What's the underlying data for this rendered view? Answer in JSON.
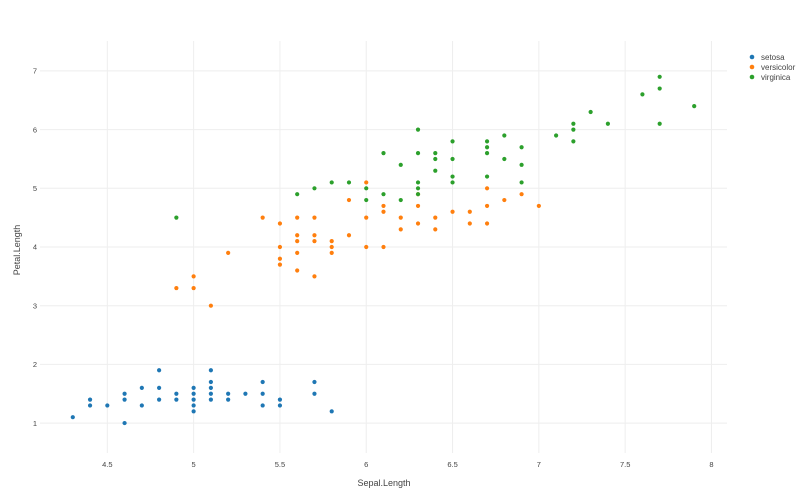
{
  "chart_data": {
    "type": "scatter",
    "xlabel": "Sepal.Length",
    "ylabel": "Petal.Length",
    "xlim": [
      4.11,
      8.09
    ],
    "ylim": [
      0.49,
      7.51
    ],
    "x_ticks": [
      "4.5",
      "5",
      "5.5",
      "6",
      "6.5",
      "7",
      "7.5",
      "8"
    ],
    "y_ticks": [
      "1",
      "2",
      "3",
      "4",
      "5",
      "6",
      "7"
    ],
    "grid": true,
    "legend_position": "top-right",
    "series": [
      {
        "name": "setosa",
        "color": "#1f77b4",
        "points": [
          [
            4.3,
            1.1
          ],
          [
            4.4,
            1.3
          ],
          [
            4.4,
            1.4
          ],
          [
            4.5,
            1.3
          ],
          [
            4.6,
            1.0
          ],
          [
            4.6,
            1.4
          ],
          [
            4.6,
            1.5
          ],
          [
            4.7,
            1.3
          ],
          [
            4.7,
            1.6
          ],
          [
            4.8,
            1.4
          ],
          [
            4.8,
            1.6
          ],
          [
            4.8,
            1.9
          ],
          [
            4.9,
            1.4
          ],
          [
            4.9,
            1.5
          ],
          [
            5.0,
            1.2
          ],
          [
            5.0,
            1.3
          ],
          [
            5.0,
            1.4
          ],
          [
            5.0,
            1.5
          ],
          [
            5.0,
            1.6
          ],
          [
            5.1,
            1.4
          ],
          [
            5.1,
            1.5
          ],
          [
            5.1,
            1.6
          ],
          [
            5.1,
            1.7
          ],
          [
            5.1,
            1.9
          ],
          [
            5.2,
            1.4
          ],
          [
            5.2,
            1.5
          ],
          [
            5.3,
            1.5
          ],
          [
            5.4,
            1.3
          ],
          [
            5.4,
            1.5
          ],
          [
            5.4,
            1.7
          ],
          [
            5.5,
            1.3
          ],
          [
            5.5,
            1.4
          ],
          [
            5.7,
            1.5
          ],
          [
            5.7,
            1.7
          ],
          [
            5.8,
            1.2
          ]
        ]
      },
      {
        "name": "versicolor",
        "color": "#ff7f0e",
        "points": [
          [
            4.9,
            3.3
          ],
          [
            5.0,
            3.3
          ],
          [
            5.0,
            3.5
          ],
          [
            5.1,
            3.0
          ],
          [
            5.2,
            3.9
          ],
          [
            5.4,
            4.5
          ],
          [
            5.5,
            3.7
          ],
          [
            5.5,
            3.8
          ],
          [
            5.5,
            4.0
          ],
          [
            5.5,
            4.4
          ],
          [
            5.6,
            3.6
          ],
          [
            5.6,
            3.9
          ],
          [
            5.6,
            4.1
          ],
          [
            5.6,
            4.2
          ],
          [
            5.6,
            4.5
          ],
          [
            5.7,
            3.5
          ],
          [
            5.7,
            4.1
          ],
          [
            5.7,
            4.2
          ],
          [
            5.7,
            4.5
          ],
          [
            5.8,
            3.9
          ],
          [
            5.8,
            4.0
          ],
          [
            5.8,
            4.1
          ],
          [
            5.9,
            4.2
          ],
          [
            5.9,
            4.8
          ],
          [
            6.0,
            4.0
          ],
          [
            6.0,
            4.5
          ],
          [
            6.0,
            5.1
          ],
          [
            6.1,
            4.0
          ],
          [
            6.1,
            4.6
          ],
          [
            6.1,
            4.7
          ],
          [
            6.2,
            4.3
          ],
          [
            6.2,
            4.5
          ],
          [
            6.3,
            4.4
          ],
          [
            6.3,
            4.7
          ],
          [
            6.3,
            4.9
          ],
          [
            6.4,
            4.3
          ],
          [
            6.4,
            4.5
          ],
          [
            6.5,
            4.6
          ],
          [
            6.6,
            4.4
          ],
          [
            6.6,
            4.6
          ],
          [
            6.7,
            4.4
          ],
          [
            6.7,
            4.7
          ],
          [
            6.7,
            5.0
          ],
          [
            6.8,
            4.8
          ],
          [
            6.9,
            4.9
          ],
          [
            7.0,
            4.7
          ]
        ]
      },
      {
        "name": "virginica",
        "color": "#2ca02c",
        "points": [
          [
            4.9,
            4.5
          ],
          [
            5.6,
            4.9
          ],
          [
            5.7,
            5.0
          ],
          [
            5.8,
            5.1
          ],
          [
            5.9,
            5.1
          ],
          [
            6.0,
            4.8
          ],
          [
            6.0,
            5.0
          ],
          [
            6.1,
            4.9
          ],
          [
            6.1,
            5.6
          ],
          [
            6.2,
            4.8
          ],
          [
            6.2,
            5.4
          ],
          [
            6.3,
            4.9
          ],
          [
            6.3,
            5.0
          ],
          [
            6.3,
            5.1
          ],
          [
            6.3,
            5.6
          ],
          [
            6.3,
            6.0
          ],
          [
            6.4,
            5.3
          ],
          [
            6.4,
            5.5
          ],
          [
            6.4,
            5.6
          ],
          [
            6.5,
            5.1
          ],
          [
            6.5,
            5.2
          ],
          [
            6.5,
            5.5
          ],
          [
            6.5,
            5.8
          ],
          [
            6.7,
            5.2
          ],
          [
            6.7,
            5.6
          ],
          [
            6.7,
            5.7
          ],
          [
            6.7,
            5.8
          ],
          [
            6.8,
            5.5
          ],
          [
            6.8,
            5.9
          ],
          [
            6.9,
            5.1
          ],
          [
            6.9,
            5.4
          ],
          [
            6.9,
            5.7
          ],
          [
            7.1,
            5.9
          ],
          [
            7.2,
            5.8
          ],
          [
            7.2,
            6.0
          ],
          [
            7.2,
            6.1
          ],
          [
            7.3,
            6.3
          ],
          [
            7.4,
            6.1
          ],
          [
            7.6,
            6.6
          ],
          [
            7.7,
            6.1
          ],
          [
            7.7,
            6.7
          ],
          [
            7.7,
            6.9
          ],
          [
            7.9,
            6.4
          ]
        ]
      }
    ]
  }
}
